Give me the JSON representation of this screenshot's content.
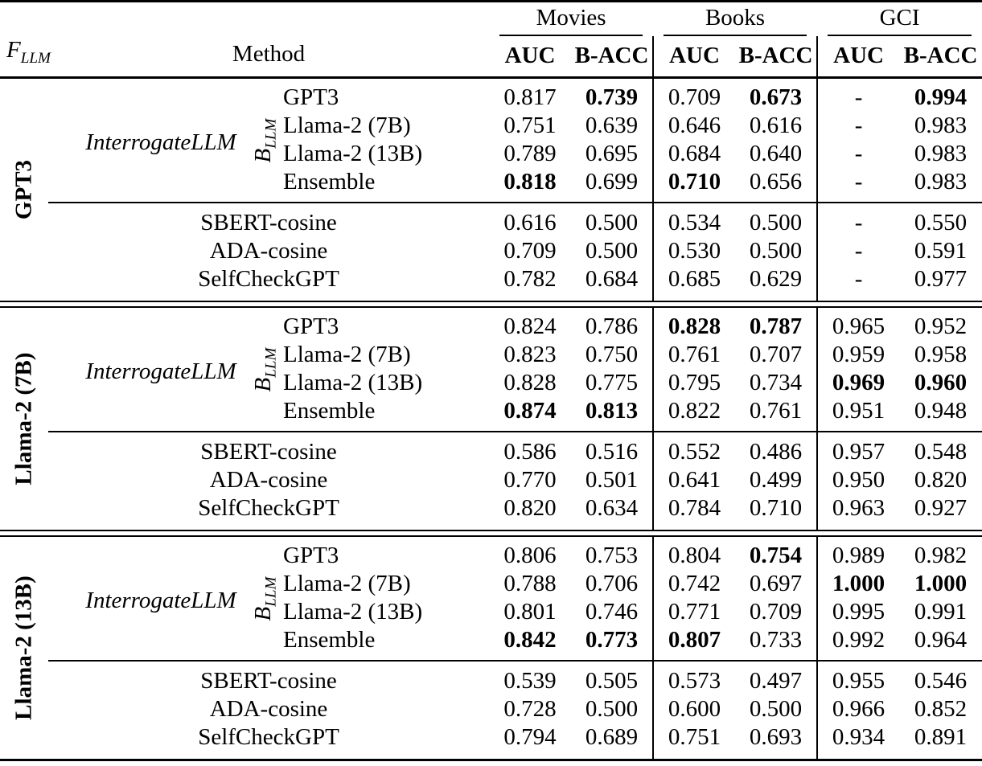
{
  "colors": {
    "text": "#000000",
    "background": "#ffffff",
    "rule": "#000000"
  },
  "table": {
    "corner": {
      "fllm_main": "F",
      "fllm_sub": "LLM",
      "method": "Method"
    },
    "groups": [
      "Movies",
      "Books",
      "GCI"
    ],
    "metrics": [
      "AUC",
      "B-ACC"
    ],
    "interrogate_label": "InterrogateLLM",
    "bllm": {
      "main": "B",
      "sub": "LLM"
    },
    "sections": [
      {
        "fllm": "GPT3",
        "interrogate_rows": [
          {
            "method": "GPT3",
            "values": [
              "0.817",
              "0.739",
              "0.709",
              "0.673",
              "-",
              "0.994"
            ],
            "bold": [
              1,
              3,
              5
            ]
          },
          {
            "method": "Llama-2 (7B)",
            "values": [
              "0.751",
              "0.639",
              "0.646",
              "0.616",
              "-",
              "0.983"
            ],
            "bold": []
          },
          {
            "method": "Llama-2 (13B)",
            "values": [
              "0.789",
              "0.695",
              "0.684",
              "0.640",
              "-",
              "0.983"
            ],
            "bold": []
          },
          {
            "method": "Ensemble",
            "values": [
              "0.818",
              "0.699",
              "0.710",
              "0.656",
              "-",
              "0.983"
            ],
            "bold": [
              0,
              2
            ]
          }
        ],
        "baseline_rows": [
          {
            "method": "SBERT-cosine",
            "values": [
              "0.616",
              "0.500",
              "0.534",
              "0.500",
              "-",
              "0.550"
            ],
            "bold": []
          },
          {
            "method": "ADA-cosine",
            "values": [
              "0.709",
              "0.500",
              "0.530",
              "0.500",
              "-",
              "0.591"
            ],
            "bold": []
          },
          {
            "method": "SelfCheckGPT",
            "values": [
              "0.782",
              "0.684",
              "0.685",
              "0.629",
              "-",
              "0.977"
            ],
            "bold": []
          }
        ]
      },
      {
        "fllm": "Llama-2 (7B)",
        "interrogate_rows": [
          {
            "method": "GPT3",
            "values": [
              "0.824",
              "0.786",
              "0.828",
              "0.787",
              "0.965",
              "0.952"
            ],
            "bold": [
              2,
              3
            ]
          },
          {
            "method": "Llama-2 (7B)",
            "values": [
              "0.823",
              "0.750",
              "0.761",
              "0.707",
              "0.959",
              "0.958"
            ],
            "bold": []
          },
          {
            "method": "Llama-2 (13B)",
            "values": [
              "0.828",
              "0.775",
              "0.795",
              "0.734",
              "0.969",
              "0.960"
            ],
            "bold": [
              4,
              5
            ]
          },
          {
            "method": "Ensemble",
            "values": [
              "0.874",
              "0.813",
              "0.822",
              "0.761",
              "0.951",
              "0.948"
            ],
            "bold": [
              0,
              1
            ]
          }
        ],
        "baseline_rows": [
          {
            "method": "SBERT-cosine",
            "values": [
              "0.586",
              "0.516",
              "0.552",
              "0.486",
              "0.957",
              "0.548"
            ],
            "bold": []
          },
          {
            "method": "ADA-cosine",
            "values": [
              "0.770",
              "0.501",
              "0.641",
              "0.499",
              "0.950",
              "0.820"
            ],
            "bold": []
          },
          {
            "method": "SelfCheckGPT",
            "values": [
              "0.820",
              "0.634",
              "0.784",
              "0.710",
              "0.963",
              "0.927"
            ],
            "bold": []
          }
        ]
      },
      {
        "fllm": "Llama-2 (13B)",
        "interrogate_rows": [
          {
            "method": "GPT3",
            "values": [
              "0.806",
              "0.753",
              "0.804",
              "0.754",
              "0.989",
              "0.982"
            ],
            "bold": [
              3
            ]
          },
          {
            "method": "Llama-2 (7B)",
            "values": [
              "0.788",
              "0.706",
              "0.742",
              "0.697",
              "1.000",
              "1.000"
            ],
            "bold": [
              4,
              5
            ]
          },
          {
            "method": "Llama-2 (13B)",
            "values": [
              "0.801",
              "0.746",
              "0.771",
              "0.709",
              "0.995",
              "0.991"
            ],
            "bold": []
          },
          {
            "method": "Ensemble",
            "values": [
              "0.842",
              "0.773",
              "0.807",
              "0.733",
              "0.992",
              "0.964"
            ],
            "bold": [
              0,
              1,
              2
            ]
          }
        ],
        "baseline_rows": [
          {
            "method": "SBERT-cosine",
            "values": [
              "0.539",
              "0.505",
              "0.573",
              "0.497",
              "0.955",
              "0.546"
            ],
            "bold": []
          },
          {
            "method": "ADA-cosine",
            "values": [
              "0.728",
              "0.500",
              "0.600",
              "0.500",
              "0.966",
              "0.852"
            ],
            "bold": []
          },
          {
            "method": "SelfCheckGPT",
            "values": [
              "0.794",
              "0.689",
              "0.751",
              "0.693",
              "0.934",
              "0.891"
            ],
            "bold": []
          }
        ]
      }
    ]
  }
}
